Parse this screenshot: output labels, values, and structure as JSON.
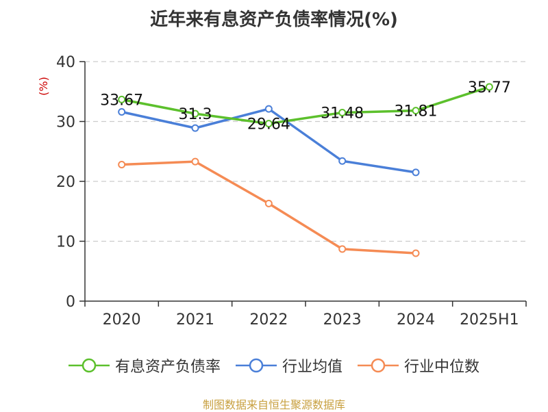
{
  "title": "近年来有息资产负债率情况(%)",
  "source": "制图数据来自恒生聚源数据库",
  "colors": {
    "title": "#333333",
    "unit": "#cc0000",
    "source": "#c8a040",
    "grid": "#cccccc",
    "axis": "#333333"
  },
  "chart_data": {
    "type": "line",
    "ylabel": "(%)",
    "ylim": [
      0,
      40
    ],
    "yticks": [
      "0",
      "10",
      "20",
      "30",
      "40"
    ],
    "categories": [
      "2020",
      "2021",
      "2022",
      "2023",
      "2024",
      "2025H1"
    ],
    "grid": true,
    "legend_position": "bottom",
    "series": [
      {
        "name": "有息资产负债率",
        "color": "#5cc02c",
        "values": [
          33.67,
          31.3,
          29.64,
          31.48,
          31.81,
          35.77
        ],
        "labels": [
          "33.67",
          "31.3",
          "29.64",
          "31.48",
          "31.81",
          "35.77"
        ]
      },
      {
        "name": "行业均值",
        "color": "#4a7fd8",
        "values": [
          31.6,
          28.9,
          32.1,
          23.4,
          21.5,
          null
        ]
      },
      {
        "name": "行业中位数",
        "color": "#f58b54",
        "values": [
          22.8,
          23.3,
          16.3,
          8.7,
          8.0,
          null
        ]
      }
    ]
  }
}
